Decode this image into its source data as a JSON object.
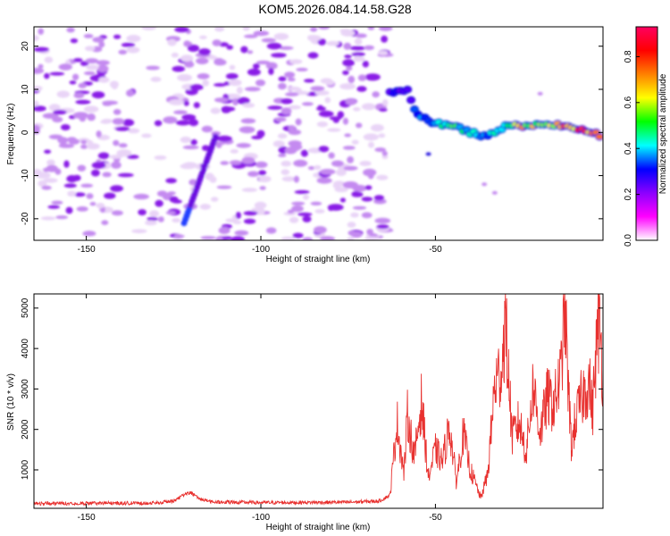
{
  "title": "KOM5.2026.084.14.58.G28",
  "chart_data": [
    {
      "type": "heatmap",
      "name": "spectrogram",
      "xlabel": "Height of straight line (km)",
      "ylabel": "Frequency (Hz)",
      "xlim": [
        -165,
        -2
      ],
      "ylim": [
        -25,
        24.5
      ],
      "xticks": [
        -150,
        -100,
        -50
      ],
      "xtick_labels": [
        "-150",
        "-100",
        "-50"
      ],
      "yticks": [
        20,
        10,
        0,
        -10,
        -20
      ],
      "ytick_labels": [
        "20",
        "10",
        "0",
        "-10",
        "-20"
      ],
      "colorbar": {
        "label": "Normalized spectral amplitude",
        "range": [
          0,
          0.93
        ],
        "ticks": [
          0.0,
          0.2,
          0.4,
          0.6,
          0.8
        ],
        "tick_labels": [
          "0.0",
          "0.2",
          "0.4",
          "0.6",
          "0.8"
        ],
        "colormap": [
          "#ffffff",
          "#ff00ff",
          "#8b00ff",
          "#0000ff",
          "#00ffff",
          "#00ff00",
          "#ffff00",
          "#ff8000",
          "#ff0000",
          "#ff0060"
        ]
      },
      "features": {
        "noise_region_x": [
          -165,
          -63
        ],
        "diagonal_streak": {
          "x": [
            -122,
            -113
          ],
          "freq": [
            -21,
            -1
          ]
        },
        "main_track": [
          {
            "x": -63,
            "freq": 9.5,
            "amp": 0.3
          },
          {
            "x": -58,
            "freq": 9.8,
            "amp": 0.3
          },
          {
            "x": -56,
            "freq": 5,
            "amp": 0.35
          },
          {
            "x": -52,
            "freq": 2.5,
            "amp": 0.4
          },
          {
            "x": -45,
            "freq": 1.5,
            "amp": 0.55
          },
          {
            "x": -40,
            "freq": 0,
            "amp": 0.45
          },
          {
            "x": -35,
            "freq": -1,
            "amp": 0.4
          },
          {
            "x": -30,
            "freq": 1.5,
            "amp": 0.55
          },
          {
            "x": -25,
            "freq": 1.5,
            "amp": 0.75
          },
          {
            "x": -20,
            "freq": 2,
            "amp": 0.6
          },
          {
            "x": -12,
            "freq": 1.5,
            "amp": 0.8
          },
          {
            "x": -5,
            "freq": 0,
            "amp": 0.85
          },
          {
            "x": -2,
            "freq": -1,
            "amp": 0.7
          }
        ]
      }
    },
    {
      "type": "line",
      "name": "snr",
      "xlabel": "Height of straight line (km)",
      "ylabel": "SNR (10 * v/v)",
      "xlim": [
        -165,
        -2
      ],
      "ylim": [
        50,
        5350
      ],
      "xticks": [
        -150,
        -100,
        -50
      ],
      "xtick_labels": [
        "-150",
        "-100",
        "-50"
      ],
      "yticks": [
        1000,
        2000,
        3000,
        4000,
        5000
      ],
      "ytick_labels": [
        "1000",
        "2000",
        "3000",
        "4000",
        "5000"
      ],
      "color": "#e8312f",
      "x": [
        -165,
        -130,
        -125,
        -122,
        -120,
        -118,
        -114,
        -100,
        -75,
        -66,
        -63,
        -61,
        -59,
        -58,
        -56,
        -54,
        -52,
        -50,
        -48,
        -46,
        -44,
        -42,
        -40,
        -37,
        -35,
        -33,
        -31,
        -30,
        -28,
        -26,
        -24,
        -22,
        -20,
        -18,
        -16,
        -14,
        -13,
        -12,
        -11,
        -10,
        -8,
        -6,
        -5,
        -4,
        -3,
        -2
      ],
      "y": [
        170,
        180,
        230,
        380,
        440,
        300,
        210,
        190,
        200,
        230,
        380,
        2200,
        900,
        2350,
        1300,
        2700,
        800,
        1500,
        1200,
        2100,
        700,
        1900,
        1000,
        300,
        900,
        3100,
        3500,
        4700,
        1800,
        2200,
        1400,
        3100,
        1900,
        2800,
        2600,
        3400,
        5300,
        3100,
        1500,
        2200,
        2800,
        3200,
        2400,
        3900,
        4700,
        3300
      ]
    }
  ]
}
